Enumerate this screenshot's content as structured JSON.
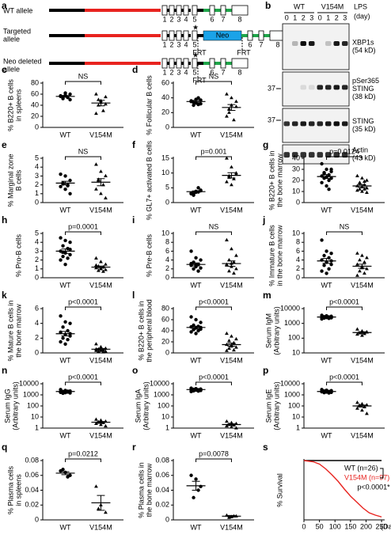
{
  "diagram": {
    "label": "a",
    "rows": [
      {
        "name": [
          "WT allele"
        ]
      },
      {
        "name": [
          "Targeted",
          "allele"
        ]
      },
      {
        "name": [
          "Neo deleted",
          "allele"
        ]
      }
    ],
    "exons": [
      "1",
      "2",
      "3",
      "4",
      "5",
      "6",
      "7",
      "8"
    ],
    "neo": "Neo",
    "frt": "FRT"
  },
  "blot": {
    "label": "b",
    "groups": [
      "WT",
      "V154M"
    ],
    "lanes": [
      "0",
      "1",
      "2",
      "3"
    ],
    "treatment": "LPS",
    "unit": "(day)",
    "marker": "37",
    "rows": [
      {
        "name": [
          "XBP1s",
          "(54 kD)"
        ]
      },
      {
        "name": [
          "pSer365",
          "STING",
          "(38 kD)"
        ]
      },
      {
        "name": [
          "STING",
          "(35 kD)"
        ]
      },
      {
        "name": [
          "Actin",
          "(43 kD)"
        ]
      }
    ]
  },
  "chart_data": [
    {
      "type": "strip",
      "label": "c",
      "ylabel": [
        "% B220+ B cells",
        "in spleens"
      ],
      "categories": [
        "WT",
        "V154M"
      ],
      "groups": [
        [
          56,
          58,
          60,
          52,
          54,
          57,
          62,
          50,
          55
        ],
        [
          60,
          48,
          55,
          40,
          30,
          25,
          45,
          42,
          50
        ]
      ],
      "means": [
        56,
        44
      ],
      "sems": [
        1.5,
        5
      ],
      "ylim": [
        0,
        80
      ],
      "yticks": [
        0,
        20,
        40,
        60,
        80
      ],
      "p_label": "NS"
    },
    {
      "type": "strip",
      "label": "d",
      "ylabel": [
        "% Follicular B cells"
      ],
      "categories": [
        "WT",
        "V154M"
      ],
      "groups": [
        [
          35,
          38,
          32,
          30,
          40,
          36,
          33,
          37,
          34,
          31
        ],
        [
          45,
          40,
          35,
          20,
          10,
          15,
          30,
          28,
          25
        ]
      ],
      "means": [
        35,
        27
      ],
      "sems": [
        1.5,
        4
      ],
      "ylim": [
        0,
        60
      ],
      "yticks": [
        0,
        20,
        40,
        60
      ],
      "p_label": "NS"
    },
    {
      "type": "strip",
      "label": "e",
      "ylabel": [
        "% Marginal zone",
        "B cells"
      ],
      "categories": [
        "WT",
        "V154M"
      ],
      "groups": [
        [
          3.2,
          3.0,
          2.5,
          2.2,
          2.0,
          1.8,
          1.5,
          1.0,
          2.1,
          1.9
        ],
        [
          4.3,
          3.5,
          3.0,
          2.6,
          2.0,
          1.5,
          1.0,
          0.5,
          2.5
        ]
      ],
      "means": [
        2.2,
        2.3
      ],
      "sems": [
        0.2,
        0.4
      ],
      "ylim": [
        0,
        5
      ],
      "yticks": [
        0,
        1,
        2,
        3,
        4,
        5
      ],
      "p_label": "NS"
    },
    {
      "type": "strip",
      "label": "f",
      "ylabel": [
        "% GL7+ activated B cells"
      ],
      "categories": [
        "WT",
        "V154M"
      ],
      "groups": [
        [
          3,
          3.5,
          4,
          2.5,
          5,
          3.2,
          3.8,
          4.2,
          2.8,
          3.6
        ],
        [
          15,
          12,
          10,
          9,
          8,
          7,
          6,
          9.5,
          8.5
        ]
      ],
      "means": [
        3.7,
        9.2
      ],
      "sems": [
        0.25,
        0.9
      ],
      "ylim": [
        0,
        15
      ],
      "yticks": [
        0,
        5,
        10,
        15
      ],
      "p_label": "p=0.001"
    },
    {
      "type": "strip",
      "label": "g",
      "ylabel": [
        "% B220+ B cells in",
        "the bone marrow"
      ],
      "categories": [
        "WT",
        "V154M"
      ],
      "groups": [
        [
          35,
          30,
          28,
          27,
          25,
          24,
          23,
          22,
          22,
          20,
          18,
          15,
          30,
          26,
          12
        ],
        [
          24,
          22,
          20,
          18,
          16,
          15,
          14,
          13,
          12,
          12,
          11,
          10,
          9,
          17,
          19
        ]
      ],
      "means": [
        23.5,
        15
      ],
      "sems": [
        1.8,
        1.3
      ],
      "ylim": [
        0,
        40
      ],
      "yticks": [
        0,
        10,
        20,
        30,
        40
      ],
      "p_label": "p=0.0124"
    },
    {
      "type": "strip",
      "label": "h",
      "ylabel": [
        "% Pro-B cells"
      ],
      "categories": [
        "WT",
        "V154M"
      ],
      "groups": [
        [
          4.5,
          4.2,
          4.0,
          3.6,
          3.3,
          3.0,
          2.8,
          2.6,
          2.4,
          2.2,
          2.0,
          1.5,
          3.2,
          2.9
        ],
        [
          2.2,
          1.8,
          1.5,
          1.3,
          1.2,
          1.1,
          1.0,
          0.9,
          0.8,
          0.7,
          1.4,
          1.0
        ]
      ],
      "means": [
        3.0,
        1.2
      ],
      "sems": [
        0.25,
        0.12
      ],
      "ylim": [
        0,
        5
      ],
      "yticks": [
        0,
        1,
        2,
        3,
        4,
        5
      ],
      "p_label": "p=0.0001"
    },
    {
      "type": "strip",
      "label": "i",
      "ylabel": [
        "% Pre-B cells"
      ],
      "categories": [
        "WT",
        "V154M"
      ],
      "groups": [
        [
          6,
          4.5,
          4,
          3.5,
          3,
          2.8,
          2.5,
          2.2,
          2,
          1.5,
          3.2,
          2.9
        ],
        [
          8.5,
          6.5,
          5,
          4,
          3.5,
          3,
          2.5,
          2,
          1.5,
          1,
          2.8,
          3.2
        ]
      ],
      "means": [
        3.0,
        3.2
      ],
      "sems": [
        0.35,
        0.6
      ],
      "ylim": [
        0,
        10
      ],
      "yticks": [
        0,
        2,
        4,
        6,
        8,
        10
      ],
      "p_label": "NS"
    },
    {
      "type": "strip",
      "label": "j",
      "ylabel": [
        "% Immature B cells",
        "in the bone marrow"
      ],
      "categories": [
        "WT",
        "V154M"
      ],
      "groups": [
        [
          8.5,
          6,
          5.5,
          5,
          4.5,
          4,
          3.5,
          3,
          2.8,
          2,
          1.5,
          1,
          3.8
        ],
        [
          5.5,
          5,
          4.5,
          4,
          3.5,
          3,
          2.5,
          2,
          1.5,
          1,
          0.5,
          2.2
        ]
      ],
      "means": [
        3.8,
        2.6
      ],
      "sems": [
        0.55,
        0.45
      ],
      "ylim": [
        0,
        10
      ],
      "yticks": [
        0,
        2,
        4,
        6,
        8,
        10
      ],
      "p_label": "NS"
    },
    {
      "type": "strip",
      "label": "k",
      "ylabel": [
        "% Mature B cells in",
        "the bone marrow"
      ],
      "categories": [
        "WT",
        "V154M"
      ],
      "groups": [
        [
          5,
          4.2,
          4,
          3.5,
          3,
          2.8,
          2.5,
          2.3,
          2,
          1.8,
          1.5,
          1.2,
          2.6
        ],
        [
          1.2,
          0.8,
          0.6,
          0.5,
          0.4,
          0.3,
          0.3,
          0.2,
          0.2,
          0.1,
          0.5
        ]
      ],
      "means": [
        2.6,
        0.5
      ],
      "sems": [
        0.3,
        0.1
      ],
      "ylim": [
        0,
        6
      ],
      "yticks": [
        0,
        2,
        4,
        6
      ],
      "p_label": "p<0.0001"
    },
    {
      "type": "strip",
      "label": "l",
      "ylabel": [
        "% B220+ B cells in",
        "the peripheral blood"
      ],
      "categories": [
        "WT",
        "V154M"
      ],
      "groups": [
        [
          65,
          60,
          55,
          50,
          48,
          47,
          45,
          43,
          42,
          40,
          38,
          35,
          46
        ],
        [
          35,
          30,
          25,
          22,
          18,
          15,
          12,
          10,
          8,
          5,
          4,
          14
        ]
      ],
      "means": [
        46,
        15
      ],
      "sems": [
        2.3,
        2.8
      ],
      "ylim": [
        0,
        80
      ],
      "yticks": [
        0,
        20,
        40,
        60,
        80
      ],
      "p_label": "p<0.0001"
    },
    {
      "type": "strip",
      "label": "m",
      "ylabel": [
        "Serum IgM",
        "(Arbitrary units)"
      ],
      "categories": [
        "WT",
        "V154M"
      ],
      "groups": [
        [
          3500,
          3200,
          3000,
          2800,
          2700,
          2600,
          2500,
          2400,
          2300,
          2200,
          2000,
          3100
        ],
        [
          400,
          300,
          250,
          220,
          200,
          180,
          150,
          260
        ]
      ],
      "means": [
        2700,
        240
      ],
      "sems": [
        120,
        30
      ],
      "log": true,
      "ylim": [
        10,
        10000
      ],
      "yticks": [
        10,
        100,
        1000,
        10000
      ],
      "p_label": "p<0.0001"
    },
    {
      "type": "strip",
      "label": "n",
      "ylabel": [
        "Serum IgG",
        "(Arbitrary units)"
      ],
      "categories": [
        "WT",
        "V154M"
      ],
      "groups": [
        [
          3000,
          2500,
          2200,
          2000,
          1800,
          1700,
          1600,
          1500,
          1400,
          2100,
          1900
        ],
        [
          6,
          5,
          4,
          3.5,
          3,
          2.5,
          2,
          1.5,
          3.2
        ]
      ],
      "means": [
        2000,
        3.4
      ],
      "sems": [
        150,
        0.5
      ],
      "log": true,
      "ylim": [
        1,
        10000
      ],
      "yticks": [
        1,
        10,
        100,
        1000,
        10000
      ],
      "p_label": "p<0.0001"
    },
    {
      "type": "strip",
      "label": "o",
      "ylabel": [
        "Serum IgA",
        "(Arbitrary units)"
      ],
      "categories": [
        "WT",
        "V154M"
      ],
      "groups": [
        [
          4000,
          3600,
          3300,
          3100,
          2900,
          2800,
          2700,
          2500,
          2300,
          2200,
          2000,
          3000
        ],
        [
          4,
          3,
          2.5,
          2,
          1.8,
          1.5,
          1.2,
          1,
          2.2
        ]
      ],
      "means": [
        3000,
        2.1
      ],
      "sems": [
        150,
        0.3
      ],
      "log": true,
      "ylim": [
        1,
        10000
      ],
      "yticks": [
        1,
        10,
        100,
        1000,
        10000
      ],
      "p_label": "p<0.0001"
    },
    {
      "type": "strip",
      "label": "p",
      "ylabel": [
        "Serum IgE",
        "(Arbitrary units)"
      ],
      "categories": [
        "WT",
        "V154M"
      ],
      "groups": [
        [
          3000,
          2600,
          2400,
          2200,
          2000,
          1900,
          1800,
          1700,
          1600,
          1500,
          2100
        ],
        [
          200,
          150,
          120,
          100,
          80,
          60,
          40,
          20,
          110
        ]
      ],
      "means": [
        2000,
        100
      ],
      "sems": [
        120,
        20
      ],
      "log": true,
      "ylim": [
        1,
        10000
      ],
      "yticks": [
        1,
        10,
        100,
        1000,
        10000
      ],
      "p_label": "p<0.0001"
    },
    {
      "type": "strip",
      "label": "q",
      "ylabel": [
        "% Plasma cells",
        "in spleens"
      ],
      "categories": [
        "WT",
        "V154M"
      ],
      "groups": [
        [
          0.066,
          0.064,
          0.06,
          0.068,
          0.058
        ],
        [
          0.045,
          0.02,
          0.01,
          0.015
        ]
      ],
      "means": [
        0.063,
        0.023
      ],
      "sems": [
        0.002,
        0.01
      ],
      "ylim": [
        0,
        0.08
      ],
      "yticks": [
        0,
        0.02,
        0.04,
        0.06,
        0.08
      ],
      "p_label": "p=0.0212"
    },
    {
      "type": "strip",
      "label": "r",
      "ylabel": [
        "% Plasma cells in",
        "the bone marrow"
      ],
      "categories": [
        "WT",
        "V154M"
      ],
      "groups": [
        [
          0.06,
          0.055,
          0.045,
          0.03,
          0.04
        ],
        [
          0.006,
          0.004,
          0.005,
          0.003,
          0.005
        ]
      ],
      "means": [
        0.046,
        0.005
      ],
      "sems": [
        0.006,
        0.001
      ],
      "ylim": [
        0,
        0.08
      ],
      "yticks": [
        0,
        0.02,
        0.04,
        0.06,
        0.08
      ],
      "p_label": "p=0.0078"
    },
    {
      "type": "survival",
      "label": "s",
      "ylabel": [
        "% Survival"
      ],
      "xlabel": "(Day)",
      "xlim": [
        0,
        260
      ],
      "xticks": [
        0,
        50,
        100,
        150,
        200,
        250
      ],
      "ylim": [
        0,
        100
      ],
      "p_label": "p<0.0001*",
      "series": [
        {
          "name": "WT (n=26)",
          "color": "#000000",
          "x": [
            0,
            250
          ],
          "values": [
            100,
            100
          ]
        },
        {
          "name": "V154M (n=97)",
          "color": "#e8231f",
          "x": [
            0,
            30,
            50,
            70,
            90,
            110,
            130,
            150,
            170,
            190,
            210,
            230,
            250
          ],
          "values": [
            100,
            98,
            94,
            86,
            76,
            65,
            52,
            40,
            30,
            20,
            12,
            8,
            5
          ]
        }
      ]
    }
  ]
}
